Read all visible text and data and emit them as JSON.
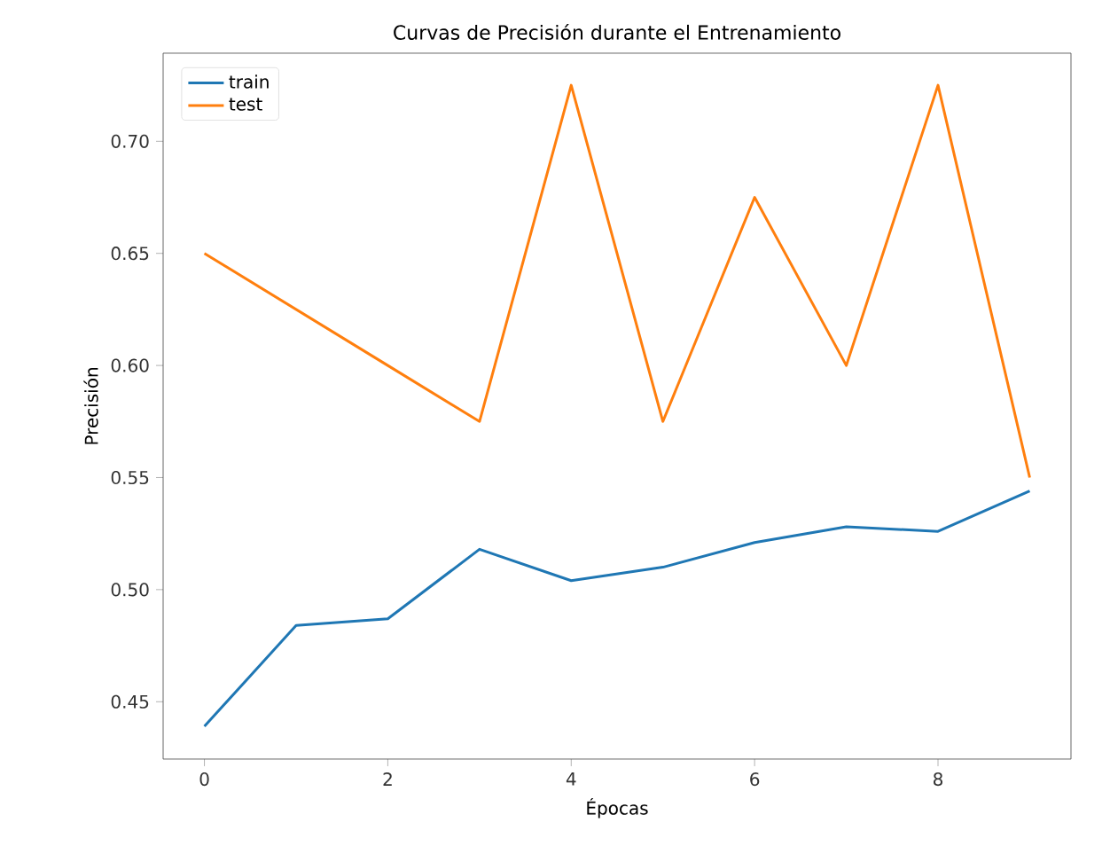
{
  "chart_data": {
    "type": "line",
    "title": "Curvas de Precisión durante el Entrenamiento",
    "xlabel": "Épocas",
    "ylabel": "Precisión",
    "x": [
      0,
      1,
      2,
      3,
      4,
      5,
      6,
      7,
      8,
      9
    ],
    "series": [
      {
        "name": "train",
        "color": "#1f77b4",
        "values": [
          0.439,
          0.484,
          0.487,
          0.518,
          0.504,
          0.51,
          0.521,
          0.528,
          0.526,
          0.544
        ]
      },
      {
        "name": "test",
        "color": "#ff7f0e",
        "values": [
          0.65,
          0.625,
          0.6,
          0.575,
          0.725,
          0.575,
          0.675,
          0.6,
          0.725,
          0.55
        ]
      }
    ],
    "xlim": [
      -0.45,
      9.45
    ],
    "ylim": [
      0.4244,
      0.7393
    ],
    "xticks": [
      0,
      2,
      4,
      6,
      8
    ],
    "yticks": [
      0.45,
      {
        "value": 0.5,
        "label": "0.50"
      },
      0.55,
      {
        "value": 0.6,
        "label": "0.60"
      },
      0.65,
      {
        "value": 0.7,
        "label": "0.70"
      }
    ],
    "grid": false,
    "legend": "top left",
    "marker": "none",
    "line_style": "solid"
  }
}
